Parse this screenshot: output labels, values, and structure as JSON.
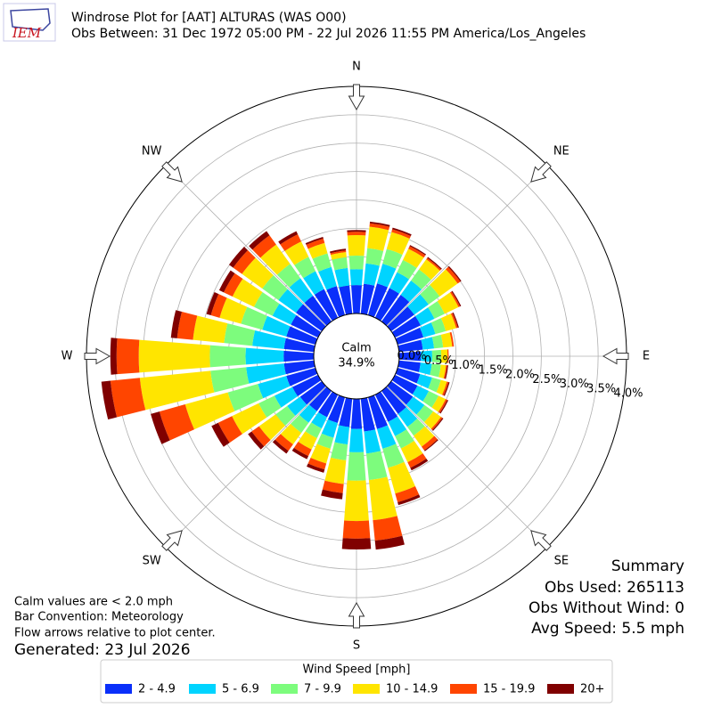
{
  "chart_data": {
    "type": "windrose",
    "logo_text": "IEM",
    "title": "Windrose Plot for [AAT] ALTURAS (WAS O00)",
    "subtitle": "Obs Between: 31 Dec 1972 05:00 PM - 22 Jul 2026 11:55 PM America/Los_Angeles",
    "x": [
      0,
      10,
      20,
      30,
      40,
      50,
      60,
      70,
      80,
      90,
      100,
      110,
      120,
      130,
      140,
      150,
      160,
      170,
      180,
      190,
      200,
      210,
      220,
      230,
      240,
      250,
      260,
      270,
      280,
      290,
      300,
      310,
      320,
      330,
      340,
      350
    ],
    "xticks": [
      {
        "value": 0,
        "label": "N"
      },
      {
        "value": 45,
        "label": "NE"
      },
      {
        "value": 90,
        "label": "E"
      },
      {
        "value": 135,
        "label": "SE"
      },
      {
        "value": 180,
        "label": "S"
      },
      {
        "value": 225,
        "label": "SW"
      },
      {
        "value": 270,
        "label": "W"
      },
      {
        "value": 315,
        "label": "NW"
      }
    ],
    "ylim": [
      0,
      4.0
    ],
    "yticks": [
      {
        "value": 0,
        "label": "0.0%"
      },
      {
        "value": 0.5,
        "label": "0.5%"
      },
      {
        "value": 1.0,
        "label": "1.0%"
      },
      {
        "value": 1.5,
        "label": "1.5%"
      },
      {
        "value": 2.0,
        "label": "2.0%"
      },
      {
        "value": 2.5,
        "label": "2.5%"
      },
      {
        "value": 3.0,
        "label": "3.0%"
      },
      {
        "value": 3.5,
        "label": "3.5%"
      },
      {
        "value": 4.0,
        "label": "4.0%"
      }
    ],
    "grid": true,
    "calm": {
      "label": "Calm",
      "value": 34.9,
      "value_label": "34.9%"
    },
    "legend_title": "Wind Speed [mph]",
    "series": [
      {
        "name": "2 - 4.9",
        "color": "#0a2ffa",
        "values": [
          0.5,
          0.53,
          0.58,
          0.58,
          0.58,
          0.5,
          0.5,
          0.47,
          0.42,
          0.38,
          0.38,
          0.41,
          0.44,
          0.47,
          0.5,
          0.53,
          0.58,
          0.58,
          0.53,
          0.5,
          0.47,
          0.44,
          0.44,
          0.47,
          0.5,
          0.53,
          0.53,
          0.53,
          0.53,
          0.53,
          0.53,
          0.56,
          0.56,
          0.56,
          0.53,
          0.5
        ]
      },
      {
        "name": "5 - 6.9",
        "color": "#00d4ff",
        "values": [
          0.28,
          0.36,
          0.36,
          0.31,
          0.31,
          0.31,
          0.27,
          0.22,
          0.2,
          0.2,
          0.2,
          0.22,
          0.22,
          0.25,
          0.28,
          0.28,
          0.36,
          0.39,
          0.41,
          0.31,
          0.27,
          0.22,
          0.25,
          0.28,
          0.35,
          0.52,
          0.67,
          0.67,
          0.56,
          0.44,
          0.36,
          0.38,
          0.38,
          0.35,
          0.35,
          0.31
        ]
      },
      {
        "name": "7 - 9.9",
        "color": "#7dfc7d",
        "values": [
          0.24,
          0.27,
          0.27,
          0.24,
          0.24,
          0.24,
          0.2,
          0.19,
          0.16,
          0.16,
          0.16,
          0.16,
          0.19,
          0.19,
          0.19,
          0.24,
          0.35,
          0.47,
          0.5,
          0.28,
          0.2,
          0.19,
          0.22,
          0.25,
          0.31,
          0.55,
          0.63,
          0.63,
          0.5,
          0.39,
          0.36,
          0.35,
          0.31,
          0.28,
          0.25,
          0.19
        ]
      },
      {
        "name": "10 - 14.9",
        "color": "#ffe500",
        "values": [
          0.36,
          0.38,
          0.31,
          0.22,
          0.22,
          0.39,
          0.27,
          0.19,
          0.16,
          0.11,
          0.09,
          0.11,
          0.14,
          0.17,
          0.24,
          0.27,
          0.47,
          0.71,
          0.71,
          0.42,
          0.27,
          0.22,
          0.25,
          0.36,
          0.52,
          0.78,
          1.25,
          1.25,
          0.55,
          0.39,
          0.42,
          0.44,
          0.42,
          0.3,
          0.19,
          0.09
        ]
      },
      {
        "name": "15 - 19.9",
        "color": "#ff4500",
        "values": [
          0.06,
          0.06,
          0.05,
          0.05,
          0.03,
          0.06,
          0.03,
          0.03,
          0.03,
          0.02,
          0.02,
          0.03,
          0.03,
          0.03,
          0.08,
          0.11,
          0.16,
          0.36,
          0.31,
          0.16,
          0.11,
          0.13,
          0.14,
          0.16,
          0.27,
          0.47,
          0.52,
          0.39,
          0.28,
          0.16,
          0.17,
          0.19,
          0.2,
          0.14,
          0.08,
          0.03
        ]
      },
      {
        "name": "20+",
        "color": "#800000",
        "values": [
          0.03,
          0.03,
          0.03,
          0.02,
          0.02,
          0.02,
          0.02,
          0.02,
          0.0,
          0.0,
          0.02,
          0.02,
          0.02,
          0.02,
          0.02,
          0.05,
          0.05,
          0.16,
          0.19,
          0.11,
          0.06,
          0.06,
          0.06,
          0.08,
          0.13,
          0.16,
          0.16,
          0.11,
          0.11,
          0.08,
          0.09,
          0.09,
          0.09,
          0.06,
          0.03,
          0.03
        ]
      }
    ],
    "notes": [
      "Calm values are < 2.0 mph",
      "Bar Convention: Meteorology",
      "Flow arrows relative to plot center."
    ],
    "generated": "Generated: 23 Jul 2026",
    "summary": {
      "title": "Summary",
      "lines": [
        "Obs Used: 265113",
        "Obs Without Wind: 0",
        "Avg Speed: 5.5 mph"
      ]
    }
  }
}
